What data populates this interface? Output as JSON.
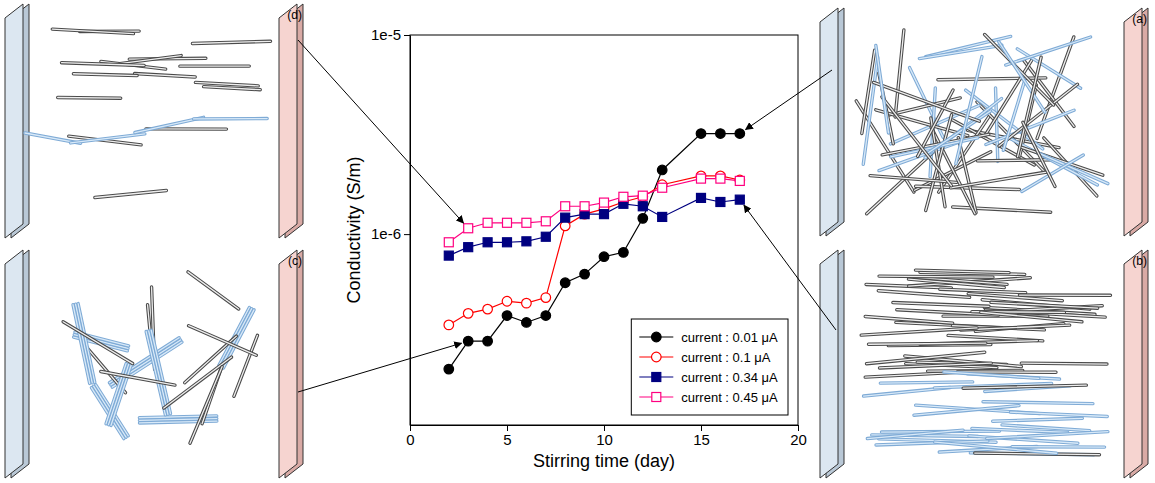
{
  "chart_data": {
    "type": "line",
    "xlabel": "Stirring time (day)",
    "ylabel": "Conductivity (S/m)",
    "log": "y",
    "grid": false,
    "legend": "lower right",
    "xlim": [
      0,
      20
    ],
    "xticks": [
      0,
      5,
      10,
      15,
      20
    ],
    "ylim": [
      1.1e-07,
      1e-05
    ],
    "yticks": [
      {
        "value": 1e-06,
        "label": "1e-6"
      },
      {
        "value": 1e-05,
        "label": "1e-5"
      }
    ],
    "x": [
      2,
      3,
      4,
      5,
      6,
      7,
      8,
      9,
      10,
      11,
      12,
      13,
      15,
      16,
      17
    ],
    "series": [
      {
        "name": "current : 0.01 μA",
        "color": "#000000",
        "marker": "circle",
        "line_style": "solid",
        "values": [
          2.1e-07,
          2.9e-07,
          2.9e-07,
          3.9e-07,
          3.6e-07,
          3.9e-07,
          5.7e-07,
          6.3e-07,
          7.7e-07,
          8.1e-07,
          1.2e-06,
          2.1e-06,
          3.2e-06,
          3.2e-06,
          3.2e-06
        ]
      },
      {
        "name": "current : 0.1 μA",
        "color": "#ff0000",
        "marker": "open-circle",
        "line_style": "solid",
        "values": [
          3.5e-07,
          4e-07,
          4.2e-07,
          4.6e-07,
          4.5e-07,
          4.8e-07,
          1.1e-06,
          1.26e-06,
          1.34e-06,
          1.45e-06,
          1.54e-06,
          1.77e-06,
          1.96e-06,
          1.96e-06,
          1.87e-06
        ]
      },
      {
        "name": "current : 0.34 μA",
        "color": "#000080",
        "marker": "square",
        "line_style": "solid",
        "values": [
          7.8e-07,
          8.6e-07,
          9.1e-07,
          9.1e-07,
          9.2e-07,
          9.7e-07,
          1.21e-06,
          1.26e-06,
          1.26e-06,
          1.42e-06,
          1.38e-06,
          1.22e-06,
          1.52e-06,
          1.45e-06,
          1.49e-06
        ]
      },
      {
        "name": "current : 0.45 μA",
        "color": "#ff0080",
        "marker": "open-square",
        "line_style": "solid",
        "values": [
          9.1e-07,
          1.07e-06,
          1.14e-06,
          1.14e-06,
          1.14e-06,
          1.16e-06,
          1.38e-06,
          1.38e-06,
          1.44e-06,
          1.54e-06,
          1.56e-06,
          1.71e-06,
          1.9e-06,
          1.9e-06,
          1.85e-06
        ]
      }
    ]
  },
  "diagrams": [
    {
      "label": "(a)"
    },
    {
      "label": "(b)"
    },
    {
      "label": "(c)"
    },
    {
      "label": "(d)"
    }
  ]
}
